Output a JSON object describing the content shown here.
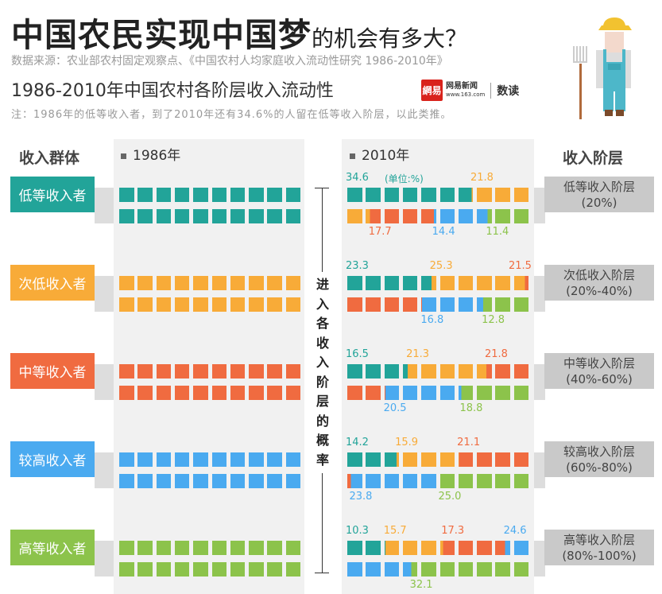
{
  "header": {
    "title_main": "中国农民实现中国梦",
    "title_tail": "的机会有多大？",
    "source": "数据来源：农业部农村固定观察点、《中国农村人均家庭收入流动性研究 1986-2010年》",
    "subtitle": "1986-2010年中国农村各阶层收入流动性",
    "note": "注：1986年的低等收入者，到了2010年还有34.6%的人留在低等收入阶层，以此类推。",
    "logo": {
      "mark": "網易",
      "name": "网易新闻",
      "url": "www.163.com",
      "brand": "数读"
    }
  },
  "columns": {
    "left_head": "收入群体",
    "year1986": "1986年",
    "year2010": "2010年",
    "right_head": "收入阶层",
    "unit": "(单位:%)",
    "middle_label": "进入各收入阶层的概率"
  },
  "colors": [
    "#22a499",
    "#f8ab38",
    "#f06b40",
    "#4aaaf0",
    "#8cc34b"
  ],
  "groups": [
    {
      "name": "低等收入者",
      "stratum": "低等收入阶层",
      "range": "(20%)"
    },
    {
      "name": "次低收入者",
      "stratum": "次低收入阶层",
      "range": "(20%-40%)"
    },
    {
      "name": "中等收入者",
      "stratum": "中等收入阶层",
      "range": "(40%-60%)"
    },
    {
      "name": "较高收入者",
      "stratum": "较高收入阶层",
      "range": "(60%-80%)"
    },
    {
      "name": "高等收入者",
      "stratum": "高等收入阶层",
      "range": "(80%-100%)"
    }
  ],
  "chart_data": {
    "type": "waffle",
    "categories_1986": [
      "低等收入者",
      "次低收入者",
      "中等收入者",
      "较高收入者",
      "高等收入者"
    ],
    "categories_2010": [
      "低等收入阶层",
      "次低收入阶层",
      "中等收入阶层",
      "较高收入阶层",
      "高等收入阶层"
    ],
    "unit": "%",
    "rows": [
      {
        "from": "低等收入者",
        "values": [
          "34.6",
          "21.8",
          "17.7",
          "14.4",
          "11.4"
        ]
      },
      {
        "from": "次低收入者",
        "values": [
          "23.3",
          "25.3",
          "21.5",
          "16.8",
          "12.8"
        ]
      },
      {
        "from": "中等收入者",
        "values": [
          "16.5",
          "21.3",
          "21.8",
          "20.5",
          "18.8"
        ]
      },
      {
        "from": "较高收入者",
        "values": [
          "14.2",
          "15.9",
          "21.1",
          "23.8",
          "25.0"
        ]
      },
      {
        "from": "高等收入者",
        "values": [
          "10.3",
          "15.7",
          "17.3",
          "24.6",
          "32.1"
        ]
      }
    ]
  }
}
